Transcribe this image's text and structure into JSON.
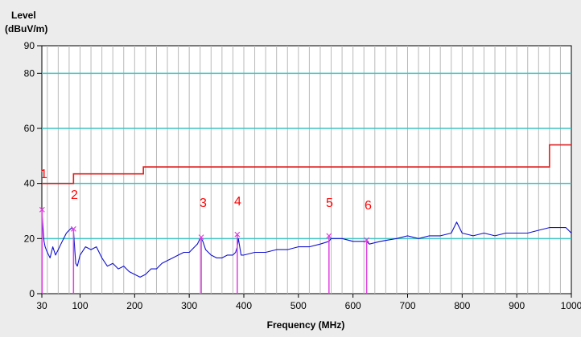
{
  "chart_data": {
    "type": "line",
    "ylabel_line1": "Level",
    "ylabel_line2": "(dBuV/m)",
    "xlabel": "Frequency (MHz)",
    "xlim": [
      30,
      1000
    ],
    "ylim": [
      0,
      90
    ],
    "x_ticks": [
      30,
      100,
      200,
      300,
      400,
      500,
      600,
      700,
      800,
      900,
      1000
    ],
    "y_ticks": [
      0,
      20,
      40,
      60,
      80,
      90
    ],
    "y_ref_lines": [
      20,
      40,
      60,
      80
    ],
    "colors": {
      "plot_bg": "#ffffff",
      "grid": "#b9b9b9",
      "ref_line": "#3fc4c4",
      "limit": "#e02020",
      "trace": "#1010d0",
      "marker": "#e040e0",
      "marker_label": "#ff0000"
    },
    "limit_line": [
      {
        "f_start": 30,
        "f_end": 88,
        "level": 40
      },
      {
        "f_start": 88,
        "f_end": 216,
        "level": 43.5
      },
      {
        "f_start": 216,
        "f_end": 960,
        "level": 46
      },
      {
        "f_start": 960,
        "f_end": 1000,
        "level": 54
      }
    ],
    "trace": {
      "x": [
        30,
        32,
        34,
        36,
        38,
        40,
        45,
        50,
        55,
        60,
        65,
        70,
        75,
        80,
        85,
        88,
        90,
        92,
        95,
        100,
        110,
        120,
        130,
        140,
        150,
        160,
        170,
        180,
        190,
        200,
        210,
        220,
        230,
        240,
        250,
        260,
        270,
        280,
        290,
        300,
        305,
        310,
        315,
        320,
        322,
        325,
        330,
        340,
        350,
        360,
        370,
        380,
        385,
        388,
        390,
        395,
        400,
        420,
        440,
        460,
        480,
        500,
        520,
        540,
        556,
        560,
        580,
        600,
        620,
        625,
        630,
        650,
        680,
        700,
        720,
        740,
        760,
        780,
        790,
        800,
        820,
        840,
        860,
        880,
        900,
        920,
        940,
        960,
        970,
        980,
        990,
        1000
      ],
      "y": [
        30,
        24,
        19,
        17,
        16,
        15,
        13,
        17,
        14,
        16,
        18,
        20,
        22,
        23,
        24,
        23,
        17,
        11,
        10,
        14,
        17,
        16,
        17,
        13,
        10,
        11,
        9,
        10,
        8,
        7,
        6,
        7,
        9,
        9,
        11,
        12,
        13,
        14,
        15,
        15,
        16,
        17,
        18,
        20,
        20,
        19,
        16,
        14,
        13,
        13,
        14,
        14,
        15,
        17,
        20,
        14,
        14,
        15,
        15,
        16,
        16,
        17,
        17,
        18,
        19,
        20,
        20,
        19,
        19,
        19,
        18,
        19,
        20,
        21,
        20,
        21,
        21,
        22,
        26,
        22,
        21,
        22,
        21,
        22,
        22,
        22,
        23,
        24,
        24,
        24,
        24,
        22
      ]
    },
    "markers": [
      {
        "label": "1",
        "freq": 30.5,
        "level": 30.5
      },
      {
        "label": "2",
        "freq": 88,
        "level": 23.5
      },
      {
        "label": "3",
        "freq": 322,
        "level": 20.5
      },
      {
        "label": "4",
        "freq": 388,
        "level": 21.5
      },
      {
        "label": "5",
        "freq": 556,
        "level": 21
      },
      {
        "label": "6",
        "freq": 625,
        "level": 19.5
      }
    ]
  }
}
